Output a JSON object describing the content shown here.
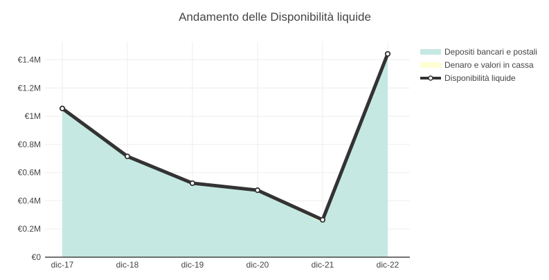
{
  "chart_data": {
    "type": "area",
    "title": "Andamento delle Disponibilità liquide",
    "xlabel": "",
    "ylabel": "",
    "categories": [
      "dic-17",
      "dic-18",
      "dic-19",
      "dic-20",
      "dic-21",
      "dic-22"
    ],
    "y_ticks": [
      0,
      200000,
      400000,
      600000,
      800000,
      1000000,
      1200000,
      1400000
    ],
    "y_tick_labels": [
      "€0",
      "€0.2M",
      "€0.4M",
      "€0.6M",
      "€0.8M",
      "€1M",
      "€1.2M",
      "€1.4M"
    ],
    "ylim": [
      0,
      1530000
    ],
    "grid": true,
    "legend_position": "top-right",
    "series": [
      {
        "name": "Depositi bancari e postali",
        "kind": "area",
        "color": "#c5e8e2",
        "values": [
          1050000,
          710000,
          520000,
          470000,
          245000,
          1440000
        ]
      },
      {
        "name": "Denaro e valori in cassa",
        "kind": "area",
        "color": "#fefed3",
        "values": [
          5000,
          5000,
          5000,
          5000,
          20000,
          2000
        ]
      },
      {
        "name": "Disponibilità liquide",
        "kind": "line",
        "color": "#333333",
        "values": [
          1055000,
          715000,
          525000,
          475000,
          265000,
          1442000
        ]
      }
    ]
  }
}
